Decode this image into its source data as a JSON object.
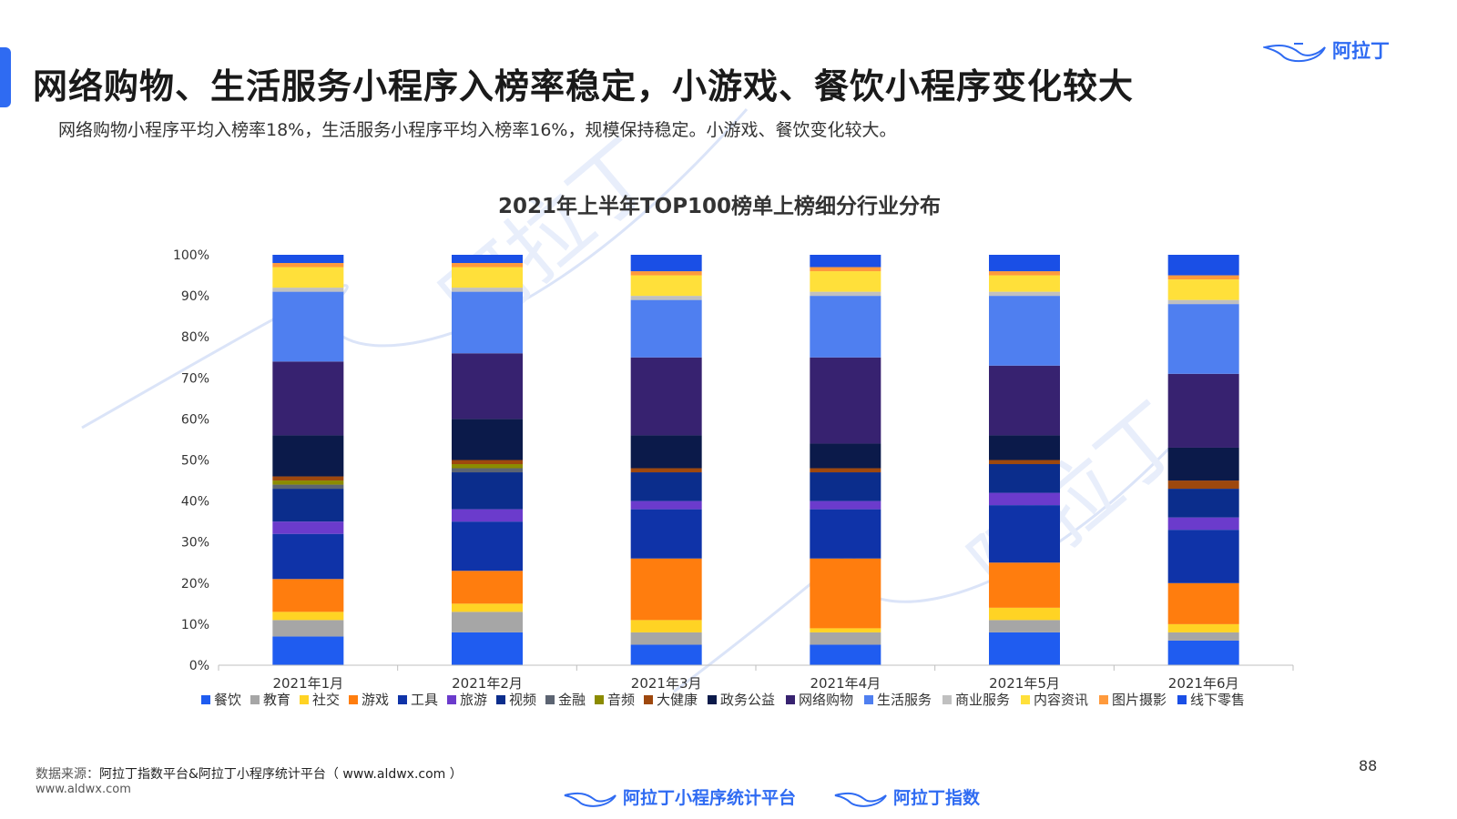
{
  "header": {
    "title": "网络购物、生活服务小程序入榜率稳定，小游戏、餐饮小程序变化较大",
    "subtitle": "网络购物小程序平均入榜率18%，生活服务小程序平均入榜率16%，规模保持稳定。小游戏、餐饮变化较大。",
    "brand": "阿拉丁"
  },
  "watermark": "阿拉丁",
  "chart_data": {
    "type": "bar",
    "stacked": true,
    "title": "2021年上半年TOP100榜单上榜细分行业分布",
    "categories": [
      "2021年1月",
      "2021年2月",
      "2021年3月",
      "2021年4月",
      "2021年5月",
      "2021年6月"
    ],
    "yticks": [
      "0%",
      "10%",
      "20%",
      "30%",
      "40%",
      "50%",
      "60%",
      "70%",
      "80%",
      "90%",
      "100%"
    ],
    "ylim": [
      0,
      100
    ],
    "legend_position": "bottom",
    "series": [
      {
        "name": "餐饮",
        "color": "#1f5cf0",
        "values": [
          7,
          8,
          5,
          5,
          8,
          6
        ]
      },
      {
        "name": "教育",
        "color": "#a6a6a6",
        "values": [
          4,
          5,
          3,
          3,
          3,
          2
        ]
      },
      {
        "name": "社交",
        "color": "#ffd324",
        "values": [
          2,
          2,
          3,
          1,
          3,
          2
        ]
      },
      {
        "name": "游戏",
        "color": "#ff7d0e",
        "values": [
          8,
          8,
          15,
          17,
          11,
          10
        ]
      },
      {
        "name": "工具",
        "color": "#0f33a8",
        "values": [
          11,
          12,
          12,
          12,
          14,
          13
        ]
      },
      {
        "name": "旅游",
        "color": "#6b3bcc",
        "values": [
          3,
          3,
          2,
          2,
          3,
          3
        ]
      },
      {
        "name": "视频",
        "color": "#0b2d8c",
        "values": [
          8,
          9,
          7,
          7,
          7,
          7
        ]
      },
      {
        "name": "金融",
        "color": "#5c6472",
        "values": [
          1,
          1,
          0,
          0,
          0,
          0
        ]
      },
      {
        "name": "音频",
        "color": "#8b8b00",
        "values": [
          1,
          1,
          0,
          0,
          0,
          0
        ]
      },
      {
        "name": "大健康",
        "color": "#9e480e",
        "values": [
          1,
          1,
          1,
          1,
          1,
          2
        ]
      },
      {
        "name": "政务公益",
        "color": "#0b1a4a",
        "values": [
          10,
          10,
          8,
          6,
          6,
          8
        ]
      },
      {
        "name": "网络购物",
        "color": "#372270",
        "values": [
          18,
          16,
          19,
          21,
          17,
          18
        ]
      },
      {
        "name": "生活服务",
        "color": "#4f7ff0",
        "values": [
          17,
          15,
          14,
          15,
          17,
          17
        ]
      },
      {
        "name": "商业服务",
        "color": "#c0c0c0",
        "values": [
          1,
          1,
          1,
          1,
          1,
          1
        ]
      },
      {
        "name": "内容资讯",
        "color": "#ffe03a",
        "values": [
          5,
          5,
          5,
          5,
          4,
          5
        ]
      },
      {
        "name": "图片摄影",
        "color": "#ff9a3c",
        "values": [
          1,
          1,
          1,
          1,
          1,
          1
        ]
      },
      {
        "name": "线下零售",
        "color": "#1a4fe6",
        "values": [
          2,
          2,
          4,
          3,
          4,
          5
        ]
      }
    ]
  },
  "footer": {
    "source_label": "数据来源：",
    "source_text": "阿拉丁指数平台&阿拉丁小程序统计平台（ www.aldwx.com ）",
    "site": "www.aldwx.com",
    "page_number": "88",
    "logo1": "阿拉丁小程序统计平台",
    "logo2": "阿拉丁指数"
  }
}
